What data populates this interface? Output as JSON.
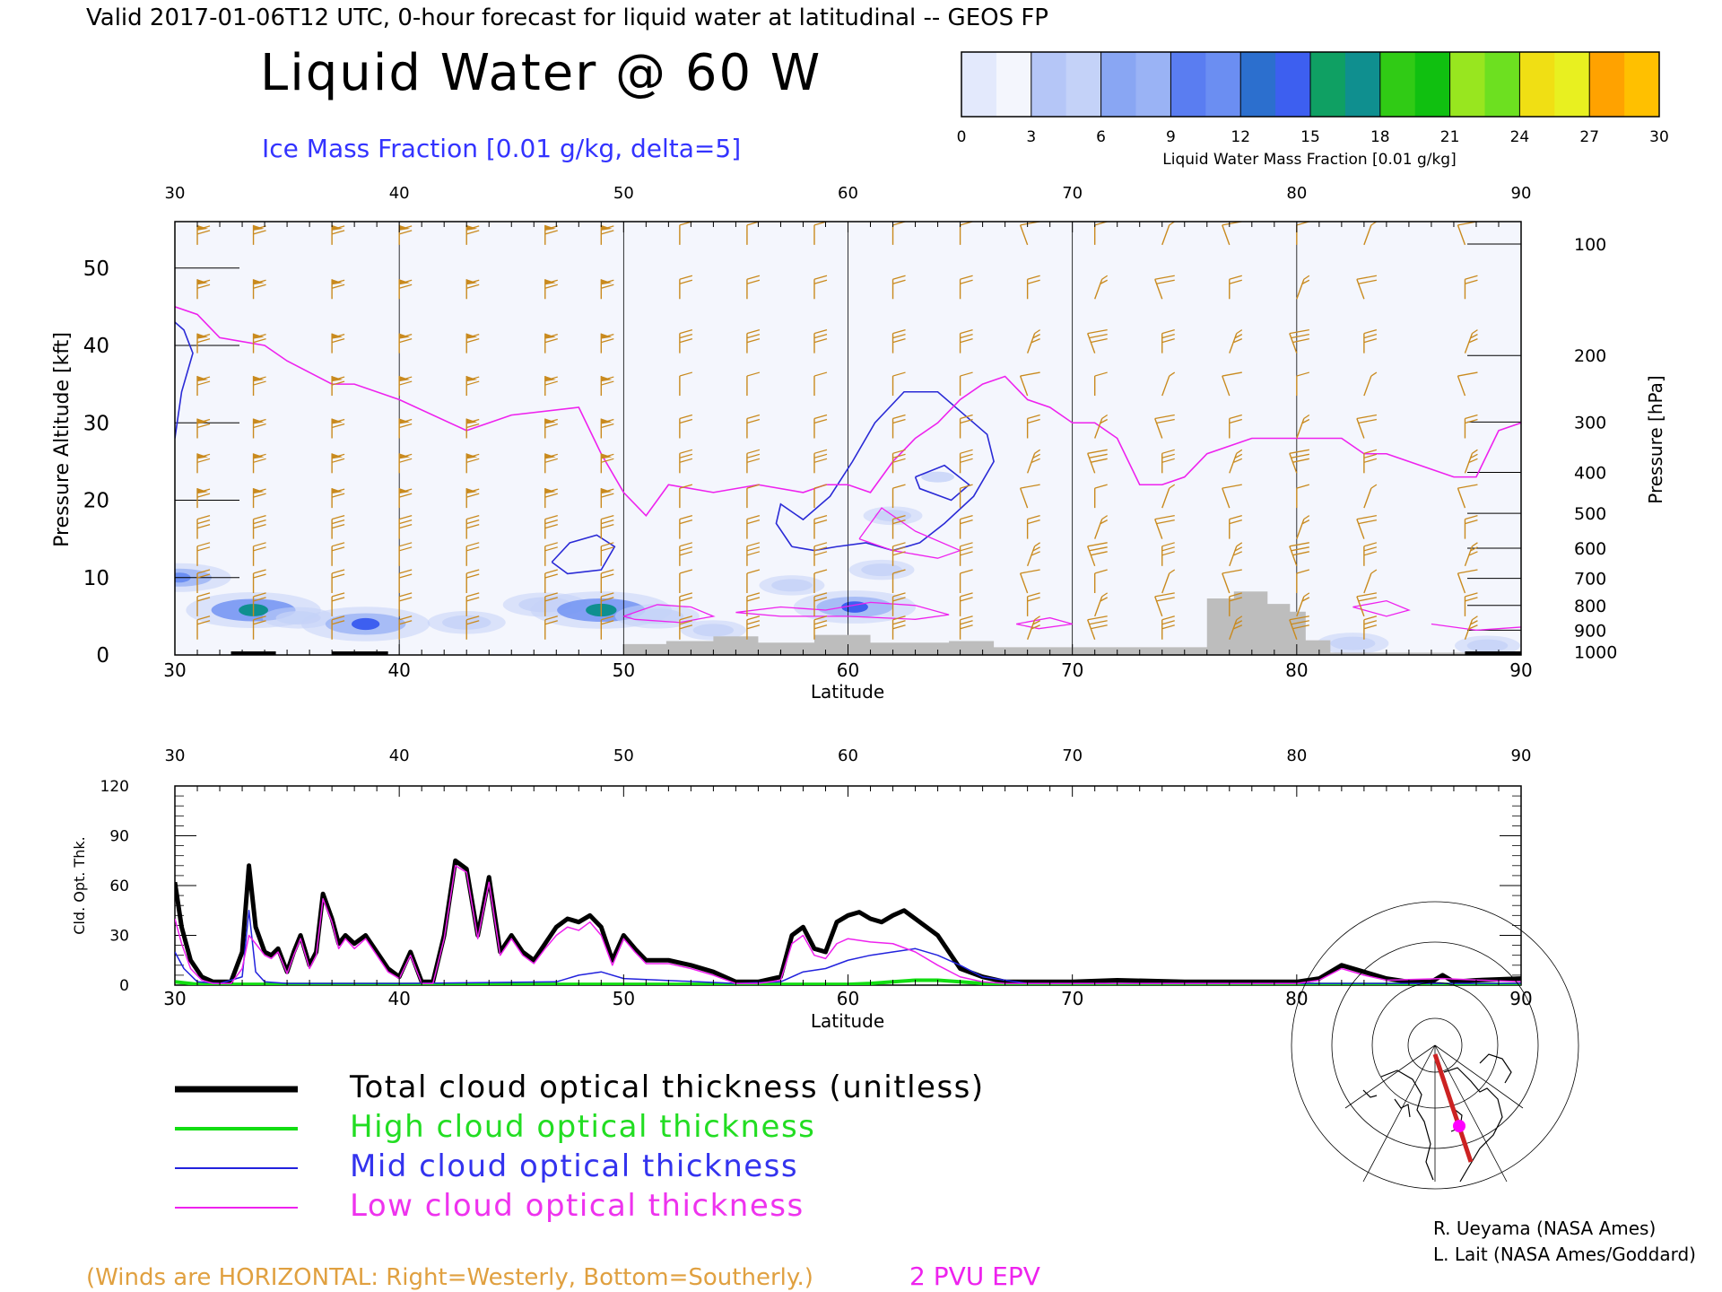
{
  "header": {
    "top_line": "Valid 2017-01-06T12 UTC, 0-hour forecast for liquid water at latitudinal -- GEOS FP",
    "main_title": "Liquid Water @ 60 W",
    "subtitle": "Ice Mass Fraction [0.01 g/kg, delta=5]"
  },
  "colorbar": {
    "ticks": [
      "0",
      "3",
      "6",
      "9",
      "12",
      "15",
      "18",
      "21",
      "24",
      "27",
      "30"
    ],
    "label": "Liquid Water Mass Fraction [0.01 g/kg]",
    "colors": [
      "#f4f6fd",
      "#c4d2f8",
      "#9ab3f5",
      "#6b8ef2",
      "#3d5ff0",
      "#0f8f8f",
      "#10c010",
      "#6de020",
      "#e8f020",
      "#ffc000",
      "#ff6a00"
    ]
  },
  "colors": {
    "wind": "#c98a1e",
    "epv": "#ee22ee",
    "ice": "#2a2ad6",
    "terrain": "#bdbdbd",
    "total": "#000000",
    "high": "#12dd12",
    "mid": "#2222dd",
    "low": "#ee22ee"
  },
  "chart_data": [
    {
      "type": "heatmap",
      "title": "Liquid Water @ 60 W",
      "xlabel": "Latitude",
      "ylabel": "Pressure Altitude [kft]",
      "ylabel_right": "Pressure [hPa]",
      "xlim": [
        30,
        90
      ],
      "ylim": [
        0,
        56
      ],
      "x_ticks": [
        "30",
        "40",
        "50",
        "60",
        "70",
        "80",
        "90"
      ],
      "y_ticks": [
        "0",
        "10",
        "20",
        "30",
        "40",
        "50"
      ],
      "pressure_ticks": [
        {
          "label": "100",
          "kft": 53.1
        },
        {
          "label": "200",
          "kft": 38.7
        },
        {
          "label": "300",
          "kft": 30.1
        },
        {
          "label": "400",
          "kft": 23.6
        },
        {
          "label": "500",
          "kft": 18.3
        },
        {
          "label": "600",
          "kft": 13.8
        },
        {
          "label": "700",
          "kft": 9.9
        },
        {
          "label": "800",
          "kft": 6.4
        },
        {
          "label": "900",
          "kft": 3.2
        },
        {
          "label": "1000",
          "kft": 0.4
        }
      ],
      "liquid_water_blobs": [
        {
          "lat": 30.2,
          "kft": 10.0,
          "value": 10
        },
        {
          "lat": 33.5,
          "kft": 5.8,
          "value": 15
        },
        {
          "lat": 35.5,
          "kft": 4.8,
          "value": 5
        },
        {
          "lat": 38.5,
          "kft": 4.0,
          "value": 14
        },
        {
          "lat": 43.0,
          "kft": 4.2,
          "value": 6
        },
        {
          "lat": 46.5,
          "kft": 6.5,
          "value": 7
        },
        {
          "lat": 49.0,
          "kft": 5.8,
          "value": 16
        },
        {
          "lat": 51.5,
          "kft": 5.0,
          "value": 7
        },
        {
          "lat": 54.0,
          "kft": 3.2,
          "value": 4
        },
        {
          "lat": 57.5,
          "kft": 9.0,
          "value": 4
        },
        {
          "lat": 60.3,
          "kft": 6.2,
          "value": 13
        },
        {
          "lat": 61.5,
          "kft": 11.0,
          "value": 4
        },
        {
          "lat": 62.0,
          "kft": 18.0,
          "value": 3
        },
        {
          "lat": 64.0,
          "kft": 23.0,
          "value": 2
        },
        {
          "lat": 82.5,
          "kft": 1.5,
          "value": 5
        },
        {
          "lat": 88.5,
          "kft": 1.2,
          "value": 4
        }
      ],
      "epv_2pvu": {
        "lat": [
          30,
          31,
          32,
          34,
          35,
          37,
          38,
          40,
          43,
          45,
          48,
          49,
          50,
          51,
          52,
          54,
          56,
          58,
          59,
          60,
          61,
          62,
          63,
          64,
          65,
          66,
          67,
          68,
          69,
          70,
          71,
          72,
          73,
          74,
          75,
          76,
          77,
          78,
          79,
          80,
          82,
          83,
          84,
          86,
          87,
          88,
          89,
          90
        ],
        "kft": [
          45,
          44,
          41,
          40,
          38,
          35,
          35,
          33,
          29,
          31,
          32,
          26,
          21,
          18,
          22,
          21,
          22,
          21,
          22,
          22,
          21,
          25,
          28,
          30,
          33,
          35,
          36,
          33,
          32,
          30,
          30,
          28,
          22,
          22,
          23,
          26,
          27,
          28,
          28,
          28,
          28,
          26,
          26,
          24,
          23,
          23,
          29,
          30
        ]
      },
      "ice_contours": [
        {
          "lat": [
            30.0,
            30.3,
            30.8,
            30.4,
            30.0
          ],
          "kft": [
            28,
            34,
            39,
            42,
            43
          ]
        },
        {
          "lat": [
            46.8,
            47.6,
            48.8,
            49.6,
            49.0,
            47.5,
            46.8
          ],
          "kft": [
            12,
            14.5,
            15.5,
            14,
            11,
            10.5,
            12
          ]
        },
        {
          "lat": [
            57.5,
            58.5,
            59.5,
            60.8,
            62.0,
            63.2,
            64.3,
            65.6,
            66.5,
            66.2,
            65.0,
            64.0,
            62.5,
            61.2,
            60.2,
            59.2,
            58.0,
            57.0,
            56.8,
            57.5
          ],
          "kft": [
            14,
            13.5,
            14,
            14.5,
            13.5,
            14.5,
            17,
            20.5,
            25,
            28.5,
            31.5,
            34,
            34,
            30,
            25,
            20.5,
            17.5,
            19.5,
            17,
            14
          ]
        },
        {
          "lat": [
            63.0,
            64.3,
            65.4,
            64.6,
            63.2,
            63.0
          ],
          "kft": [
            23,
            24.5,
            22,
            20,
            21.5,
            23
          ]
        }
      ],
      "terrain": {
        "lat": [
          50,
          51.9,
          51.9,
          54,
          54,
          56,
          56,
          58.5,
          58.5,
          61,
          61,
          64.5,
          64.5,
          66.5,
          66.5,
          76,
          76,
          77.2,
          77.2,
          78.7,
          78.7,
          79.7,
          79.7,
          80.4,
          80.4,
          81.5,
          81.5,
          90
        ],
        "kft": [
          1.4,
          1.4,
          1.8,
          1.8,
          2.4,
          2.4,
          1.6,
          1.6,
          2.6,
          2.6,
          1.6,
          1.6,
          1.8,
          1.8,
          1.0,
          1.0,
          7.3,
          7.3,
          8.2,
          8.2,
          6.6,
          6.6,
          5.6,
          5.6,
          1.9,
          1.9,
          0.3,
          0.3
        ]
      },
      "wind_columns": [
        31,
        33.5,
        37,
        40,
        43,
        46.5,
        49,
        52.5,
        55.5,
        58.5,
        62,
        65,
        68,
        71,
        74,
        77,
        80,
        83,
        87.5
      ],
      "wind_levels_kft": [
        53,
        46,
        39,
        33.5,
        28,
        23.5,
        19,
        15,
        11.5,
        8,
        5,
        2
      ]
    },
    {
      "type": "line",
      "xlabel": "Latitude",
      "ylabel": "Cld. Opt. Thk.",
      "xlim": [
        30,
        90
      ],
      "ylim": [
        0,
        120
      ],
      "x_ticks": [
        "30",
        "40",
        "50",
        "60",
        "70",
        "80",
        "90"
      ],
      "y_ticks": [
        "0",
        "30",
        "60",
        "90",
        "120"
      ],
      "series": [
        {
          "name": "Total cloud optical thickness (unitless)",
          "key": "total",
          "x": [
            30,
            30.3,
            30.7,
            31.2,
            31.7,
            32.5,
            33.0,
            33.3,
            33.6,
            34.0,
            34.3,
            34.6,
            35.0,
            35.3,
            35.6,
            36.0,
            36.3,
            36.6,
            37.0,
            37.3,
            37.6,
            38.0,
            38.5,
            39.0,
            39.5,
            40.0,
            40.5,
            41.0,
            41.5,
            42.0,
            42.5,
            43.0,
            43.5,
            44.0,
            44.5,
            45.0,
            45.5,
            46.0,
            46.5,
            47.0,
            47.5,
            48.0,
            48.5,
            49.0,
            49.5,
            50.0,
            50.5,
            51.0,
            52.0,
            53.0,
            54.0,
            55.0,
            56.0,
            57.0,
            57.5,
            58.0,
            58.5,
            59.0,
            59.5,
            60.0,
            60.5,
            61.0,
            61.5,
            62.0,
            62.5,
            63.0,
            64.0,
            65.0,
            66.0,
            67.0,
            68.0,
            70.0,
            72.0,
            75.0,
            78.0,
            80.0,
            81.0,
            82.0,
            83.0,
            84.0,
            85.0,
            86.0,
            86.5,
            87.0,
            88.0,
            90.0
          ],
          "y": [
            62,
            35,
            15,
            5,
            2,
            2,
            20,
            72,
            35,
            20,
            18,
            22,
            8,
            20,
            30,
            12,
            20,
            55,
            40,
            25,
            30,
            25,
            30,
            20,
            10,
            5,
            20,
            2,
            2,
            30,
            75,
            70,
            30,
            65,
            20,
            30,
            20,
            15,
            25,
            35,
            40,
            38,
            42,
            35,
            15,
            30,
            22,
            15,
            15,
            12,
            8,
            2,
            2,
            5,
            30,
            35,
            22,
            20,
            38,
            42,
            44,
            40,
            38,
            42,
            45,
            40,
            30,
            10,
            5,
            2,
            2,
            2,
            3,
            2,
            2,
            2,
            4,
            12,
            8,
            4,
            2,
            2,
            6,
            2,
            3,
            4
          ]
        },
        {
          "name": "High cloud optical thickness",
          "key": "high",
          "x": [
            30,
            31,
            40,
            50,
            58,
            60,
            61,
            62,
            63,
            64,
            65,
            66,
            68,
            90
          ],
          "y": [
            2,
            0.5,
            0.5,
            0.5,
            0.5,
            0.5,
            1,
            2,
            3,
            3,
            2,
            1,
            0.5,
            0.5
          ]
        },
        {
          "name": "Mid cloud optical thickness",
          "key": "mid",
          "x": [
            30,
            30.4,
            31,
            32,
            33,
            33.3,
            33.6,
            34,
            35,
            40,
            47,
            48,
            49,
            50,
            55,
            57,
            58,
            59,
            60,
            61,
            62,
            63,
            64,
            65,
            66,
            68,
            90
          ],
          "y": [
            20,
            10,
            2,
            1,
            5,
            45,
            8,
            2,
            1,
            1,
            2,
            6,
            8,
            4,
            1,
            2,
            8,
            10,
            15,
            18,
            20,
            22,
            18,
            12,
            5,
            1,
            1
          ]
        },
        {
          "name": "Low cloud optical thickness",
          "key": "low",
          "x": [
            30,
            30.3,
            30.7,
            31.2,
            31.7,
            32.5,
            33.0,
            33.3,
            33.6,
            34.0,
            34.3,
            34.6,
            35.0,
            35.3,
            35.6,
            36.0,
            36.3,
            36.6,
            37.0,
            37.3,
            37.6,
            38.0,
            38.5,
            39.0,
            39.5,
            40.0,
            40.5,
            41.0,
            41.5,
            42.0,
            42.5,
            43.0,
            43.5,
            44.0,
            44.5,
            45.0,
            45.5,
            46.0,
            46.5,
            47.0,
            47.5,
            48.0,
            48.5,
            49.0,
            49.5,
            50.0,
            50.5,
            51.0,
            52.0,
            53.0,
            54.0,
            55.0,
            56.0,
            57.0,
            57.5,
            58.0,
            58.5,
            59.0,
            59.5,
            60.0,
            61.0,
            62.0,
            63.0,
            64.0,
            65.0,
            66.0,
            67.0,
            70.0,
            80.0,
            81.0,
            82.0,
            83.0,
            84.0,
            86.5,
            90.0
          ],
          "y": [
            40,
            25,
            10,
            3,
            1,
            1,
            10,
            30,
            25,
            18,
            16,
            20,
            7,
            18,
            28,
            10,
            18,
            52,
            38,
            22,
            28,
            22,
            28,
            18,
            8,
            4,
            18,
            1,
            1,
            28,
            72,
            68,
            28,
            62,
            18,
            28,
            18,
            13,
            22,
            30,
            35,
            33,
            38,
            30,
            12,
            28,
            20,
            13,
            13,
            10,
            6,
            1,
            1,
            3,
            25,
            30,
            18,
            16,
            25,
            28,
            26,
            25,
            20,
            12,
            5,
            2,
            1,
            1,
            1,
            3,
            10,
            6,
            3,
            4,
            2
          ]
        }
      ]
    }
  ],
  "legend": {
    "total": "Total cloud optical thickness (unitless)",
    "high": "High cloud optical thickness",
    "mid": "Mid cloud optical thickness",
    "low": "Low cloud optical thickness"
  },
  "footnotes": {
    "winds": "(Winds are HORIZONTAL: Right=Westerly, Bottom=Southerly.)",
    "epv": "2 PVU EPV",
    "credit1": "R. Ueyama (NASA Ames)",
    "credit2": "L. Lait (NASA Ames/Goddard)"
  }
}
